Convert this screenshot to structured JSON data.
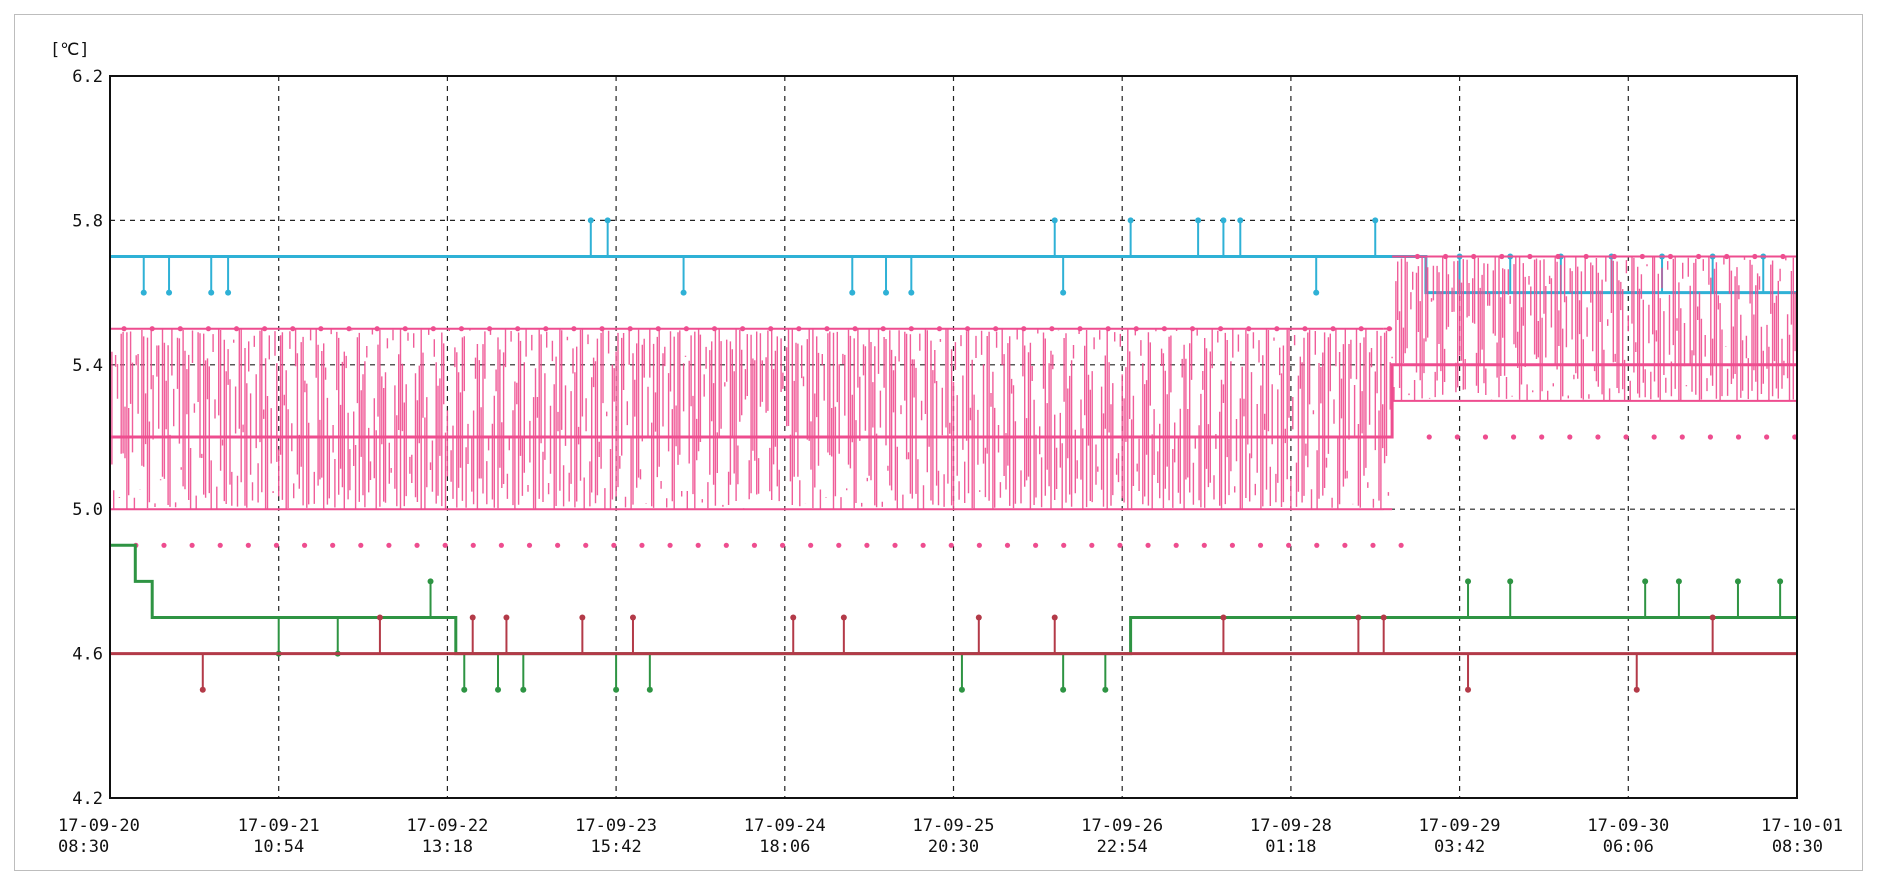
{
  "chart_data": {
    "type": "line",
    "title": "",
    "unit_label": "[℃]",
    "xlabel": "",
    "ylabel": "",
    "ylim": [
      4.2,
      6.2
    ],
    "y_ticks": [
      "6.2",
      "5.8",
      "5.4",
      "5.0",
      "4.6",
      "4.2"
    ],
    "x_ticks": [
      {
        "date": "17-09-20",
        "time": "08:30"
      },
      {
        "date": "17-09-21",
        "time": "10:54"
      },
      {
        "date": "17-09-22",
        "time": "13:18"
      },
      {
        "date": "17-09-23",
        "time": "15:42"
      },
      {
        "date": "17-09-24",
        "time": "18:06"
      },
      {
        "date": "17-09-25",
        "time": "20:30"
      },
      {
        "date": "17-09-26",
        "time": "22:54"
      },
      {
        "date": "17-09-28",
        "time": "01:18"
      },
      {
        "date": "17-09-29",
        "time": "03:42"
      },
      {
        "date": "17-09-30",
        "time": "06:06"
      },
      {
        "date": "17-10-01",
        "time": "08:30"
      }
    ],
    "grid": true,
    "legend": "none",
    "series": [
      {
        "color": "#2fb1d6",
        "baseline": [
          [
            0,
            5.7
          ],
          [
            0.5,
            5.7
          ],
          [
            1.0,
            5.7
          ],
          [
            2.0,
            5.7
          ],
          [
            3.0,
            5.7
          ],
          [
            4.0,
            5.7
          ],
          [
            5.0,
            5.7
          ],
          [
            6.0,
            5.7
          ],
          [
            7.0,
            5.7
          ],
          [
            7.6,
            5.7
          ],
          [
            7.8,
            5.6
          ],
          [
            9.0,
            5.6
          ],
          [
            10.0,
            5.6
          ]
        ],
        "spikes": [
          [
            0.2,
            5.6
          ],
          [
            0.35,
            5.6
          ],
          [
            0.6,
            5.6
          ],
          [
            0.7,
            5.6
          ],
          [
            2.85,
            5.8
          ],
          [
            2.95,
            5.8
          ],
          [
            3.4,
            5.6
          ],
          [
            4.4,
            5.6
          ],
          [
            4.6,
            5.6
          ],
          [
            4.75,
            5.6
          ],
          [
            5.6,
            5.8
          ],
          [
            5.65,
            5.6
          ],
          [
            6.05,
            5.8
          ],
          [
            6.45,
            5.8
          ],
          [
            6.6,
            5.8
          ],
          [
            6.7,
            5.8
          ],
          [
            7.15,
            5.6
          ],
          [
            7.5,
            5.8
          ],
          [
            8.0,
            5.7
          ],
          [
            8.3,
            5.7
          ],
          [
            8.6,
            5.7
          ],
          [
            8.9,
            5.7
          ],
          [
            9.2,
            5.7
          ],
          [
            9.5,
            5.7
          ],
          [
            9.8,
            5.7
          ]
        ]
      },
      {
        "color": "#ee4d8f",
        "baseline": [
          [
            0,
            5.2
          ],
          [
            1.0,
            5.2
          ],
          [
            2.0,
            5.2
          ],
          [
            3.0,
            5.2
          ],
          [
            4.0,
            5.2
          ],
          [
            5.0,
            5.2
          ],
          [
            6.0,
            5.2
          ],
          [
            7.0,
            5.2
          ],
          [
            7.55,
            5.2
          ],
          [
            7.6,
            5.4
          ],
          [
            8.0,
            5.4
          ],
          [
            9.0,
            5.4
          ],
          [
            10.0,
            5.4
          ]
        ],
        "band": [
          [
            0,
            5.0,
            5.5
          ],
          [
            7.55,
            5.0,
            5.5
          ],
          [
            7.6,
            5.3,
            5.7
          ],
          [
            10.0,
            5.3,
            5.7
          ]
        ]
      },
      {
        "color": "#2e9443",
        "baseline": [
          [
            0,
            4.9
          ],
          [
            0.15,
            4.8
          ],
          [
            0.25,
            4.7
          ],
          [
            2.0,
            4.7
          ],
          [
            2.05,
            4.6
          ],
          [
            4.0,
            4.6
          ],
          [
            6.0,
            4.6
          ],
          [
            6.05,
            4.7
          ],
          [
            8.0,
            4.7
          ],
          [
            9.0,
            4.7
          ],
          [
            10.0,
            4.7
          ]
        ],
        "spikes": [
          [
            1.0,
            4.6
          ],
          [
            1.35,
            4.6
          ],
          [
            1.9,
            4.8
          ],
          [
            2.1,
            4.5
          ],
          [
            2.3,
            4.5
          ],
          [
            2.45,
            4.5
          ],
          [
            3.0,
            4.5
          ],
          [
            3.2,
            4.5
          ],
          [
            5.05,
            4.5
          ],
          [
            5.65,
            4.5
          ],
          [
            5.9,
            4.5
          ],
          [
            8.05,
            4.8
          ],
          [
            8.3,
            4.8
          ],
          [
            9.1,
            4.8
          ],
          [
            9.3,
            4.8
          ],
          [
            9.65,
            4.8
          ],
          [
            9.9,
            4.8
          ]
        ]
      },
      {
        "color": "#b33a48",
        "baseline": [
          [
            0,
            4.6
          ],
          [
            1.0,
            4.6
          ],
          [
            2.0,
            4.6
          ],
          [
            4.0,
            4.6
          ],
          [
            6.0,
            4.6
          ],
          [
            8.0,
            4.6
          ],
          [
            10.0,
            4.6
          ]
        ],
        "spikes": [
          [
            0.55,
            4.5
          ],
          [
            1.6,
            4.7
          ],
          [
            2.15,
            4.7
          ],
          [
            2.35,
            4.7
          ],
          [
            2.8,
            4.7
          ],
          [
            3.1,
            4.7
          ],
          [
            4.05,
            4.7
          ],
          [
            4.35,
            4.7
          ],
          [
            5.15,
            4.7
          ],
          [
            5.6,
            4.7
          ],
          [
            6.6,
            4.7
          ],
          [
            7.4,
            4.7
          ],
          [
            7.55,
            4.7
          ],
          [
            8.05,
            4.5
          ],
          [
            9.05,
            4.5
          ],
          [
            9.5,
            4.7
          ]
        ]
      }
    ]
  }
}
